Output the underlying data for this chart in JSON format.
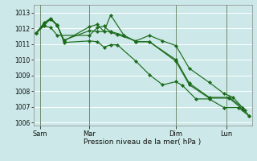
{
  "xlabel": "Pression niveau de la mer( hPa )",
  "bg_color": "#cce8e8",
  "grid_color": "#ffffff",
  "line_color": "#1a6b1a",
  "vline_color": "#5a7a5a",
  "ylim": [
    1005.8,
    1013.5
  ],
  "xlim": [
    -0.2,
    16.2
  ],
  "yticks": [
    1006,
    1007,
    1008,
    1009,
    1010,
    1011,
    1012,
    1013
  ],
  "day_labels": [
    "Sam",
    "Mar",
    "Dim",
    "Lun"
  ],
  "day_positions": [
    0.3,
    4.0,
    10.5,
    14.3
  ],
  "vline_positions": [
    0.3,
    4.0,
    10.5,
    14.3
  ],
  "series_x": [
    [
      0.0,
      0.6,
      1.1,
      1.6,
      2.1,
      4.0,
      4.6,
      5.1,
      5.6,
      6.1,
      7.5,
      8.5,
      9.5,
      10.5,
      11.0,
      12.0,
      13.0,
      14.1,
      15.2,
      16.0
    ],
    [
      0.0,
      0.6,
      1.1,
      1.6,
      2.1,
      4.0,
      4.6,
      5.1,
      5.6,
      6.6,
      7.5,
      8.5,
      10.5,
      11.5,
      13.0,
      14.5,
      15.5
    ],
    [
      0.0,
      0.6,
      1.1,
      1.6,
      4.0,
      4.6,
      5.1,
      5.6,
      6.1,
      7.5,
      8.5,
      9.5,
      10.5,
      11.5,
      13.0,
      14.1,
      14.8,
      15.7
    ],
    [
      0.0,
      0.6,
      1.1,
      1.6,
      2.1,
      4.0,
      4.6,
      5.6,
      6.6,
      7.5,
      8.5,
      10.5,
      11.5,
      13.0,
      14.5,
      15.5,
      16.0
    ]
  ],
  "series_y": [
    [
      1011.7,
      1012.3,
      1012.6,
      1012.2,
      1011.1,
      1011.2,
      1011.15,
      1010.8,
      1010.95,
      1010.95,
      1009.9,
      1009.05,
      1008.4,
      1008.6,
      1008.35,
      1007.5,
      1007.5,
      1006.95,
      1006.95,
      1006.4
    ],
    [
      1011.7,
      1012.35,
      1012.65,
      1012.2,
      1011.2,
      1012.1,
      1012.25,
      1011.8,
      1012.85,
      1011.55,
      1011.15,
      1011.15,
      1009.9,
      1008.4,
      1007.55,
      1007.55,
      1006.85
    ],
    [
      1011.7,
      1012.15,
      1012.05,
      1011.55,
      1011.55,
      1012.05,
      1012.15,
      1011.75,
      1011.6,
      1011.2,
      1011.55,
      1011.2,
      1010.9,
      1009.45,
      1008.55,
      1007.85,
      1007.6,
      1006.75
    ],
    [
      1011.7,
      1012.2,
      1012.6,
      1012.15,
      1011.25,
      1011.85,
      1011.8,
      1011.8,
      1011.55,
      1011.15,
      1011.15,
      1010.0,
      1008.5,
      1007.6,
      1007.6,
      1006.95,
      1006.4
    ]
  ]
}
